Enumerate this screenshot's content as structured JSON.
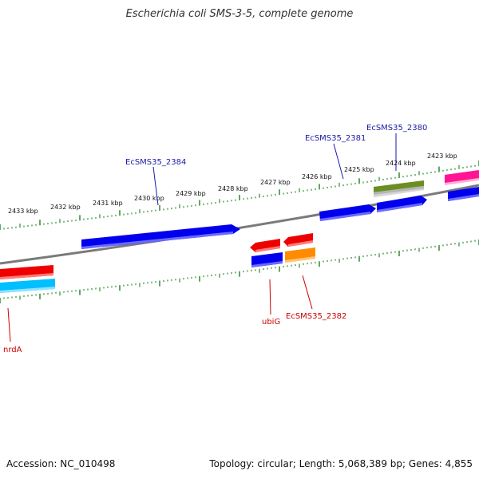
{
  "title": "Escherichia coli SMS-3-5, complete genome",
  "footer": {
    "accession": "Accession: NC_010498",
    "summary": "Topology: circular; Length: 5,068,389 bp; Genes: 4,855"
  },
  "ruler_labels": [
    "2433 kbp",
    "2432 kbp",
    "2431 kbp",
    "2430 kbp",
    "2429 kbp",
    "2428 kbp",
    "2427 kbp",
    "2426 kbp",
    "2425 kbp",
    "2424 kbp",
    "2423 kbp"
  ],
  "gene_labels": {
    "ecsms35_2380": "EcSMS35_2380",
    "ecsms35_2381": "EcSMS35_2381",
    "ecsms35_2384": "EcSMS35_2384",
    "ubig": "ubiG",
    "ecsms35_2382": "EcSMS35_2382",
    "nrda": "nrdA"
  },
  "colors": {
    "backbone": "#777777",
    "ruler": "#2e8b2e",
    "forward_gene": "#0000ee",
    "reverse_gene": "#ee0000",
    "orange_gene": "#ff8c00",
    "cyan_gene": "#00bfff",
    "olive_gene": "#6b8e23",
    "pink_gene": "#ff1493",
    "forward_label": "#1a1aa6",
    "reverse_label": "#cc0000"
  }
}
